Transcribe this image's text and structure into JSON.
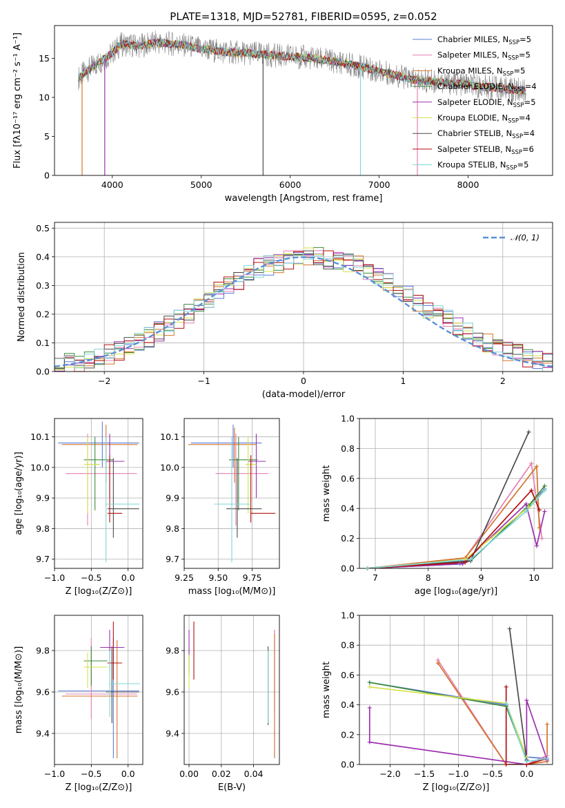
{
  "title": "PLATE=1318, MJD=52781, FIBERID=0595, z=0.052",
  "colors": [
    "#5b7bd6",
    "#e57fb3",
    "#d2742b",
    "#3b8b3b",
    "#9b2fae",
    "#d4e04a",
    "#4a4a4a",
    "#b20f0f",
    "#7ed6d6"
  ],
  "chart_data": [
    {
      "id": "spectrum",
      "type": "line",
      "title": "PLATE=1318, MJD=52781, FIBERID=0595, z=0.052",
      "xlabel": "wavelength [Angstrom, rest frame]",
      "ylabel": "Flux [fλ10⁻¹⁷ erg cm⁻² s⁻¹ A⁻¹]",
      "xlim": [
        3350,
        8950
      ],
      "ylim": [
        0,
        19.2
      ],
      "xticks": [
        4000,
        5000,
        6000,
        7000,
        8000
      ],
      "yticks": [
        0,
        5,
        10,
        15
      ],
      "legend_position": "top-right",
      "data_color": "#808080",
      "continuum": {
        "x": [
          3620,
          3700,
          3850,
          3950,
          4100,
          4300,
          4500,
          4800,
          5000,
          5300,
          5600,
          5900,
          6200,
          6500,
          6800,
          7100,
          7400,
          7700,
          8000,
          8300,
          8600,
          8650
        ],
        "y": [
          12.5,
          13.3,
          14.5,
          15.2,
          16.8,
          16.6,
          17.0,
          16.7,
          16.2,
          15.8,
          15.6,
          15.3,
          15.1,
          14.6,
          13.9,
          13.1,
          12.2,
          12.0,
          11.6,
          11.2,
          10.9,
          10.8
        ]
      },
      "absorption_lines": [
        {
          "x": 3660,
          "y": 0.0
        },
        {
          "x": 3915,
          "y": 0.0
        },
        {
          "x": 5695,
          "y": 0.0
        },
        {
          "x": 6790,
          "y": 0.0
        },
        {
          "x": 7430,
          "y": 0.0
        }
      ],
      "series": [
        {
          "name": "Chabrier MILES, N",
          "sub": "SSP",
          "suffix": "=5"
        },
        {
          "name": "Salpeter MILES, N",
          "sub": "SSP",
          "suffix": "=5"
        },
        {
          "name": "Kroupa MILES, N",
          "sub": "SSP",
          "suffix": "=5"
        },
        {
          "name": "Chabrier ELODIE, N",
          "sub": "SSP",
          "suffix": "=4"
        },
        {
          "name": "Salpeter ELODIE, N",
          "sub": "SSP",
          "suffix": "=5"
        },
        {
          "name": "Kroupa ELODIE, N",
          "sub": "SSP",
          "suffix": "=4"
        },
        {
          "name": "Chabrier STELIB, N",
          "sub": "SSP",
          "suffix": "=4"
        },
        {
          "name": "Salpeter STELIB, N",
          "sub": "SSP",
          "suffix": "=6"
        },
        {
          "name": "Kroupa STELIB, N",
          "sub": "SSP",
          "suffix": "=5"
        }
      ]
    },
    {
      "id": "residuals",
      "type": "step",
      "xlabel": "(data-model)/error",
      "ylabel": "Normed distribution",
      "xlim": [
        -2.5,
        2.5
      ],
      "ylim": [
        0,
        0.52
      ],
      "xticks": [
        -2,
        -1,
        0,
        1,
        2
      ],
      "yticks": [
        0.0,
        0.1,
        0.2,
        0.3,
        0.4,
        0.5
      ],
      "legend": "𝒩(0, 1)",
      "legend_position": "top-right",
      "gaussian": {
        "mean": 0,
        "sigma": 1,
        "color": "#5b8fd6"
      },
      "bin_width": 0.1,
      "bin_start": -2.5,
      "base_density": [
        0.02,
        0.03,
        0.03,
        0.04,
        0.05,
        0.06,
        0.07,
        0.09,
        0.1,
        0.12,
        0.14,
        0.16,
        0.18,
        0.2,
        0.22,
        0.25,
        0.28,
        0.3,
        0.32,
        0.34,
        0.36,
        0.37,
        0.38,
        0.39,
        0.4,
        0.4,
        0.4,
        0.39,
        0.39,
        0.38,
        0.37,
        0.35,
        0.33,
        0.31,
        0.29,
        0.27,
        0.24,
        0.22,
        0.2,
        0.18,
        0.16,
        0.14,
        0.12,
        0.1,
        0.08,
        0.07,
        0.06,
        0.05,
        0.04,
        0.03
      ]
    },
    {
      "id": "age-vs-Z",
      "type": "errorbar",
      "xlabel": "Z [log₁₀(Z/Z⊙)]",
      "ylabel": "age  [log₁₀(age/yr)]",
      "xlim": [
        -1.0,
        0.2
      ],
      "ylim": [
        9.67,
        10.16
      ],
      "xticks": [
        -1.0,
        -0.5,
        0.0
      ],
      "yticks": [
        9.7,
        9.8,
        9.9,
        10.0,
        10.1
      ],
      "points": [
        {
          "x": -0.35,
          "y": 10.08,
          "xlo": -0.95,
          "xhi": 0.15,
          "ylo": 10.0,
          "yhi": 10.15
        },
        {
          "x": -0.55,
          "y": 9.98,
          "xlo": -0.85,
          "xhi": 0.12,
          "ylo": 9.81,
          "yhi": 10.11
        },
        {
          "x": -0.3,
          "y": 10.075,
          "xlo": -0.9,
          "xhi": 0.13,
          "ylo": 9.95,
          "yhi": 10.14
        },
        {
          "x": -0.45,
          "y": 10.025,
          "xlo": -0.6,
          "xhi": -0.2,
          "ylo": 9.86,
          "yhi": 10.1
        },
        {
          "x": -0.25,
          "y": 10.02,
          "xlo": -0.3,
          "xhi": -0.05,
          "ylo": 9.9,
          "yhi": 10.11
        },
        {
          "x": -0.55,
          "y": 10.01,
          "xlo": -0.6,
          "xhi": -0.38,
          "ylo": 9.85,
          "yhi": 10.1
        },
        {
          "x": -0.2,
          "y": 9.865,
          "xlo": -0.28,
          "xhi": 0.15,
          "ylo": 9.77,
          "yhi": 10.03
        },
        {
          "x": -0.25,
          "y": 9.85,
          "xlo": -0.28,
          "xhi": -0.08,
          "ylo": 9.82,
          "yhi": 10.04
        },
        {
          "x": -0.3,
          "y": 9.88,
          "xlo": -0.3,
          "xhi": 0.16,
          "ylo": 9.69,
          "yhi": 10.1
        }
      ]
    },
    {
      "id": "age-vs-mass",
      "type": "errorbar",
      "xlabel": "mass [log₁₀(M/M⊙)]",
      "ylabel": "",
      "xlim": [
        9.25,
        9.95
      ],
      "ylim": [
        9.67,
        10.16
      ],
      "xticks": [
        9.25,
        9.5,
        9.75
      ],
      "yticks": [
        9.7,
        9.8,
        9.9,
        10.0,
        10.1
      ],
      "points": [
        {
          "x": 9.61,
          "y": 10.08,
          "xlo": 9.3,
          "xhi": 9.82,
          "ylo": 10.0,
          "yhi": 10.14
        },
        {
          "x": 9.63,
          "y": 9.98,
          "xlo": 9.48,
          "xhi": 9.87,
          "ylo": 9.81,
          "yhi": 10.11
        },
        {
          "x": 9.62,
          "y": 10.075,
          "xlo": 9.28,
          "xhi": 9.78,
          "ylo": 9.95,
          "yhi": 10.13
        },
        {
          "x": 9.65,
          "y": 10.025,
          "xlo": 9.58,
          "xhi": 9.79,
          "ylo": 9.86,
          "yhi": 10.1
        },
        {
          "x": 9.78,
          "y": 10.02,
          "xlo": 9.72,
          "xhi": 9.85,
          "ylo": 9.9,
          "yhi": 10.11
        },
        {
          "x": 9.72,
          "y": 10.01,
          "xlo": 9.7,
          "xhi": 9.78,
          "ylo": 9.85,
          "yhi": 10.1
        },
        {
          "x": 9.64,
          "y": 9.865,
          "xlo": 9.56,
          "xhi": 9.82,
          "ylo": 9.77,
          "yhi": 10.03
        },
        {
          "x": 9.74,
          "y": 9.85,
          "xlo": 9.74,
          "xhi": 9.92,
          "ylo": 9.82,
          "yhi": 10.04
        },
        {
          "x": 9.6,
          "y": 9.88,
          "xlo": 9.47,
          "xhi": 9.74,
          "ylo": 9.69,
          "yhi": 10.1
        }
      ]
    },
    {
      "id": "weight-vs-age",
      "type": "line",
      "xlabel": "age  [log₁₀(age/yr)]",
      "ylabel": "mass weight",
      "xlim": [
        6.7,
        10.35
      ],
      "ylim": [
        0,
        1.0
      ],
      "xticks": [
        7,
        8,
        9,
        10
      ],
      "yticks": [
        0.0,
        0.2,
        0.4,
        0.6,
        0.8,
        1.0
      ],
      "series": [
        {
          "x": [
            6.85,
            8.6,
            8.8,
            9.85,
            10.2
          ],
          "y": [
            0.0,
            0.03,
            0.05,
            0.4,
            0.53
          ]
        },
        {
          "x": [
            6.85,
            8.7,
            9.95,
            10.15
          ],
          "y": [
            0.0,
            0.07,
            0.7,
            0.2
          ]
        },
        {
          "x": [
            6.85,
            8.7,
            10.05,
            10.1
          ],
          "y": [
            0.0,
            0.07,
            0.68,
            0.27
          ]
        },
        {
          "x": [
            6.85,
            8.8,
            9.9,
            10.2
          ],
          "y": [
            0.0,
            0.05,
            0.42,
            0.55
          ]
        },
        {
          "x": [
            6.85,
            8.65,
            9.85,
            10.05,
            10.2
          ],
          "y": [
            0.0,
            0.03,
            0.43,
            0.15,
            0.38
          ]
        },
        {
          "x": [
            6.85,
            8.7,
            9.9,
            10.2
          ],
          "y": [
            0.0,
            0.06,
            0.41,
            0.52
          ]
        },
        {
          "x": [
            6.85,
            8.8,
            9.9
          ],
          "y": [
            0.0,
            0.05,
            0.91
          ]
        },
        {
          "x": [
            6.85,
            8.7,
            9.95,
            10.1
          ],
          "y": [
            0.0,
            0.04,
            0.52,
            0.39
          ]
        },
        {
          "x": [
            6.85,
            8.8,
            9.85,
            10.2
          ],
          "y": [
            0.0,
            0.06,
            0.38,
            0.52
          ]
        }
      ]
    },
    {
      "id": "mass-vs-Z",
      "type": "errorbar",
      "xlabel": "Z [log₁₀(Z/Z⊙)]",
      "ylabel": "mass [log₁₀(M/M⊙)]",
      "xlim": [
        -1.0,
        0.2
      ],
      "ylim": [
        9.25,
        9.97
      ],
      "xticks": [
        -1.0,
        -0.5,
        0.0
      ],
      "yticks": [
        9.4,
        9.6,
        9.8
      ],
      "points": [
        {
          "x": -0.2,
          "y": 9.605,
          "xlo": -0.95,
          "xhi": 0.15,
          "ylo": 9.28,
          "yhi": 9.86
        },
        {
          "x": -0.5,
          "y": 9.59,
          "xlo": -0.85,
          "xhi": 0.12,
          "ylo": 9.47,
          "yhi": 9.86
        },
        {
          "x": -0.15,
          "y": 9.58,
          "xlo": -0.9,
          "xhi": 0.13,
          "ylo": 9.28,
          "yhi": 9.85
        },
        {
          "x": -0.5,
          "y": 9.75,
          "xlo": -0.6,
          "xhi": -0.28,
          "ylo": 9.63,
          "yhi": 9.82
        },
        {
          "x": -0.25,
          "y": 9.815,
          "xlo": -0.38,
          "xhi": -0.05,
          "ylo": 9.7,
          "yhi": 9.9
        },
        {
          "x": -0.55,
          "y": 9.72,
          "xlo": -0.6,
          "xhi": -0.28,
          "ylo": 9.62,
          "yhi": 9.79
        },
        {
          "x": -0.22,
          "y": 9.6,
          "xlo": -0.3,
          "xhi": 0.15,
          "ylo": 9.45,
          "yhi": 9.82
        },
        {
          "x": -0.2,
          "y": 9.74,
          "xlo": -0.28,
          "xhi": -0.08,
          "ylo": 9.66,
          "yhi": 9.94
        },
        {
          "x": -0.25,
          "y": 9.64,
          "xlo": -0.25,
          "xhi": 0.16,
          "ylo": 9.48,
          "yhi": 9.8
        }
      ]
    },
    {
      "id": "mass-vs-EBV",
      "type": "errorbar",
      "xlabel": "E(B-V)",
      "ylabel": "",
      "xlim": [
        -0.003,
        0.056
      ],
      "ylim": [
        9.25,
        9.97
      ],
      "xticks": [
        0.0,
        0.02,
        0.04
      ],
      "yticks": [
        9.4,
        9.6,
        9.8
      ],
      "points": [
        {
          "x": 0.053,
          "y": 9.6,
          "xlo": 0.053,
          "xhi": 0.053,
          "ylo": 9.28,
          "yhi": 9.9
        },
        {
          "x": 0.053,
          "y": 9.6,
          "xlo": 0.053,
          "xhi": 0.053,
          "ylo": 9.5,
          "yhi": 9.9
        },
        {
          "x": 0.053,
          "y": 9.6,
          "xlo": 0.053,
          "xhi": 0.053,
          "ylo": 9.28,
          "yhi": 9.88
        },
        {
          "x": 0.0,
          "y": 9.75,
          "xlo": 0.0,
          "xhi": 0.0,
          "ylo": 9.68,
          "yhi": 9.82
        },
        {
          "x": 0.0,
          "y": 9.8,
          "xlo": 0.0,
          "xhi": 0.0,
          "ylo": 9.7,
          "yhi": 9.9
        },
        {
          "x": 0.0,
          "y": 9.7,
          "xlo": 0.0,
          "xhi": 0.0,
          "ylo": 9.62,
          "yhi": 9.78
        },
        {
          "x": 0.049,
          "y": 9.63,
          "xlo": 0.049,
          "xhi": 0.049,
          "ylo": 9.44,
          "yhi": 9.82
        },
        {
          "x": 0.003,
          "y": 9.8,
          "xlo": 0.003,
          "xhi": 0.003,
          "ylo": 9.66,
          "yhi": 9.94
        },
        {
          "x": 0.049,
          "y": 9.64,
          "xlo": 0.049,
          "xhi": 0.049,
          "ylo": 9.45,
          "yhi": 9.8
        }
      ]
    },
    {
      "id": "weight-vs-Z",
      "type": "line",
      "xlabel": "Z [log₁₀(Z/Z⊙)]",
      "ylabel": "mass weight",
      "xlim": [
        -2.45,
        0.38
      ],
      "ylim": [
        0,
        1.0
      ],
      "xticks": [
        -2.0,
        -1.5,
        -1.0,
        -0.5,
        0.0
      ],
      "yticks": [
        0.0,
        0.2,
        0.4,
        0.6,
        0.8,
        1.0
      ],
      "series": [
        {
          "x": [
            -2.3,
            -0.3,
            0.0,
            0.3
          ],
          "y": [
            0.55,
            0.4,
            0.05,
            0.04
          ]
        },
        {
          "x": [
            -1.3,
            -0.3,
            0.0,
            0.3
          ],
          "y": [
            0.7,
            0.0,
            0.0,
            0.06
          ]
        },
        {
          "x": [
            -1.3,
            -0.3,
            0.0,
            0.3,
            0.3
          ],
          "y": [
            0.68,
            0.0,
            0.0,
            0.02,
            0.27
          ]
        },
        {
          "x": [
            -2.3,
            -0.3,
            0.0
          ],
          "y": [
            0.55,
            0.39,
            0.03
          ]
        },
        {
          "x": [
            -2.3,
            -2.3,
            0.0,
            0.0,
            0.3
          ],
          "y": [
            0.38,
            0.15,
            0.0,
            0.43,
            0.03
          ]
        },
        {
          "x": [
            -2.3,
            -0.3,
            0.0
          ],
          "y": [
            0.52,
            0.41,
            0.05
          ]
        },
        {
          "x": [
            -0.25,
            0.0
          ],
          "y": [
            0.91,
            0.03
          ]
        },
        {
          "x": [
            -0.3,
            -0.3,
            0.0,
            0.3
          ],
          "y": [
            0.52,
            0.0,
            0.0,
            0.04
          ]
        },
        {
          "x": [
            -0.3,
            0.0,
            0.3
          ],
          "y": [
            0.41,
            0.02,
            0.04
          ]
        }
      ]
    }
  ]
}
